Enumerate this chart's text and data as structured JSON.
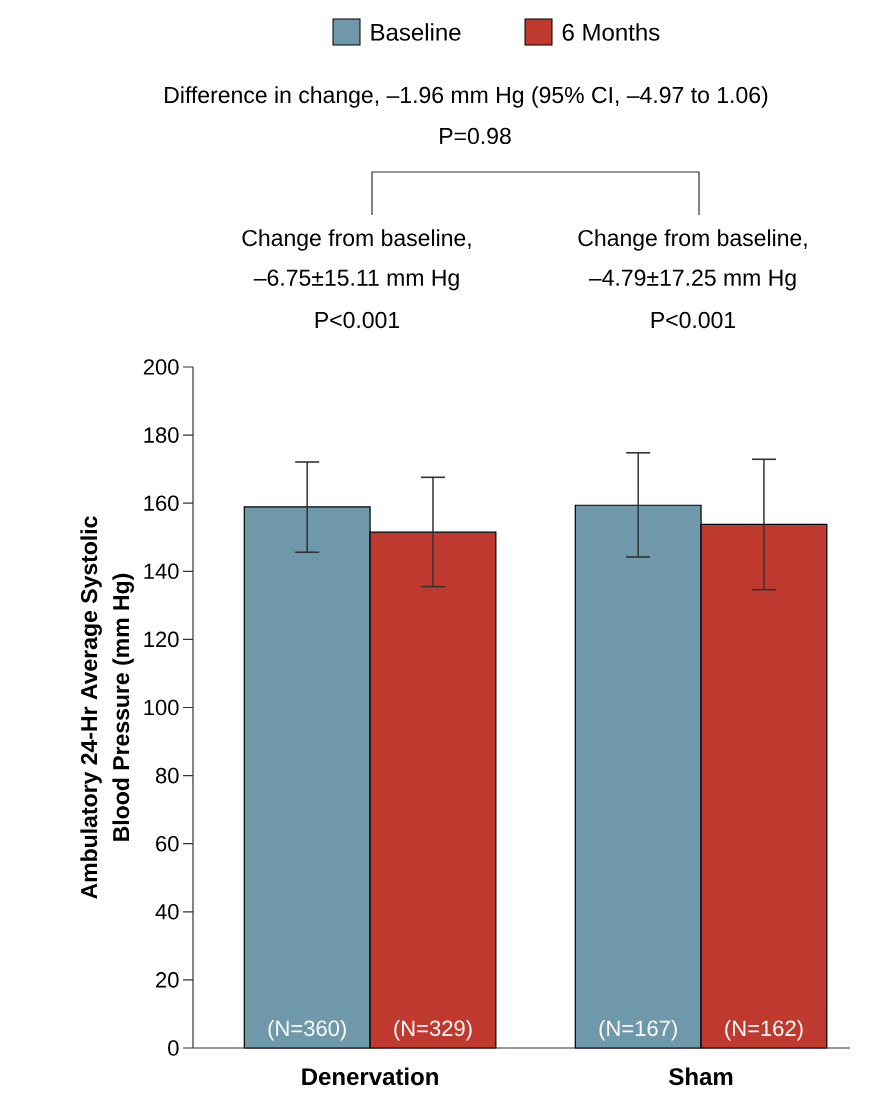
{
  "chart_data": {
    "type": "bar",
    "categories": [
      "Denervation",
      "Sham"
    ],
    "ylabel": "Ambulatory 24-Hr Average Systolic Blood Pressure (mm Hg)",
    "series": [
      {
        "name": "Baseline",
        "color": "#6f99ab",
        "values": [
          158.9,
          159.4
        ],
        "errors": [
          [
            145.6,
            172.1
          ],
          [
            144.2,
            174.8
          ]
        ]
      },
      {
        "name": "6 Months",
        "color": "#c0392f",
        "values": [
          151.5,
          153.8
        ],
        "errors": [
          [
            135.5,
            167.6
          ],
          [
            134.6,
            172.9
          ]
        ]
      }
    ],
    "ylim": [
      0,
      200
    ],
    "yticks": [
      0,
      20,
      40,
      60,
      80,
      100,
      120,
      140,
      160,
      180,
      200
    ],
    "legend": "top",
    "annotations": [
      "Difference in change, –1.96 mm Hg (95% CI, –4.97 to 1.06)",
      "P=0.98",
      "Change from baseline,",
      "–6.75±15.11 mm Hg",
      "P<0.001",
      "Change from baseline,",
      "–4.79±17.25 mm Hg",
      "P<0.001",
      "(N=360)",
      "(N=329)",
      "(N=167)",
      "(N=162)"
    ]
  }
}
